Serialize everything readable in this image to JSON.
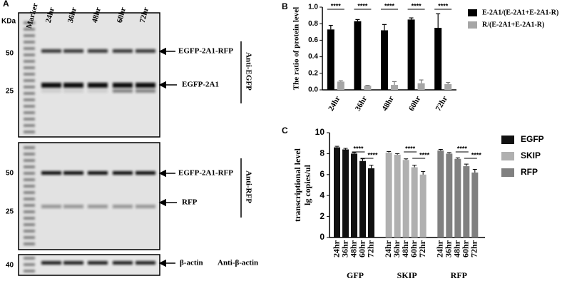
{
  "blot": {
    "panel": "A",
    "kda": "KDa",
    "lanes": [
      "Marker",
      "24hr",
      "36hr",
      "48hr",
      "60hr",
      "72hr"
    ],
    "mw": [
      "50",
      "25",
      "50",
      "25",
      "40"
    ],
    "bands": [
      "EGFP-2A1-RFP",
      "EGFP-2A1",
      "EGFP-2A1-RFP",
      "RFP",
      "β-actin"
    ],
    "antibodies": [
      "Anti-EGFP",
      "Anti-RFP",
      "Anti-β-actin"
    ]
  },
  "chart_data": [
    {
      "panel": "B",
      "type": "bar",
      "ylabel": "The ratio of protein  level",
      "categories": [
        "24hr",
        "36hr",
        "48hr",
        "60hr",
        "72hr"
      ],
      "series": [
        {
          "name": "E-2A1/(E-2A1+E-2A1-R)",
          "color": "#000000",
          "values": [
            0.73,
            0.83,
            0.72,
            0.85,
            0.75
          ],
          "errors": [
            0.05,
            0.02,
            0.07,
            0.02,
            0.17
          ]
        },
        {
          "name": "R/(E-2A1+E-2A1-R)",
          "color": "#a6a6a6",
          "values": [
            0.1,
            0.05,
            0.06,
            0.08,
            0.07
          ],
          "errors": [
            0.01,
            0.005,
            0.04,
            0.04,
            0.02
          ]
        }
      ],
      "ylim": [
        0,
        1
      ],
      "yticks": [
        {
          "value": 0,
          "label": "0.0"
        },
        0.2,
        0.4,
        0.6,
        0.8,
        {
          "value": 1,
          "label": "1.0"
        }
      ],
      "annotations": [
        "****",
        "****",
        "****",
        "****",
        "****"
      ]
    },
    {
      "panel": "C",
      "type": "bar_by_series",
      "ylabel": [
        "transcriptional level",
        "lg copies/ul"
      ],
      "categories": [
        "24hr",
        "36hr",
        "48hr",
        "60hr",
        "72hr"
      ],
      "group_labels": [
        "GFP",
        "SKIP",
        "RFP"
      ],
      "series": [
        {
          "name": "EGFP",
          "color": "#111111",
          "values": [
            8.6,
            8.4,
            8.0,
            7.3,
            6.6
          ],
          "errors": [
            0.1,
            0.1,
            0.1,
            0.2,
            0.3
          ]
        },
        {
          "name": "SKIP",
          "color": "#b0b0b0",
          "values": [
            8.1,
            7.9,
            7.4,
            6.7,
            6.0
          ],
          "errors": [
            0.1,
            0.1,
            0.1,
            0.2,
            0.3
          ]
        },
        {
          "name": "RFP",
          "color": "#808080",
          "values": [
            8.3,
            8.0,
            7.5,
            6.8,
            6.2
          ],
          "errors": [
            0.1,
            0.1,
            0.1,
            0.2,
            0.3
          ]
        }
      ],
      "ylim": [
        0,
        10
      ],
      "yticks": [
        0,
        2,
        4,
        6,
        8,
        10
      ],
      "annotations": [
        "****",
        "****",
        "****",
        "****",
        "****",
        "****"
      ]
    }
  ]
}
